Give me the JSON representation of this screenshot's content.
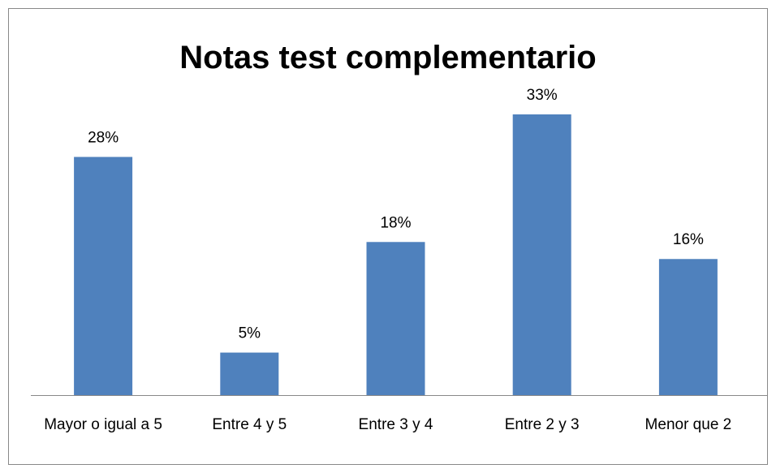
{
  "chart_data": {
    "type": "bar",
    "title": "Notas test complementario",
    "categories": [
      "Mayor o igual a 5",
      "Entre 4 y 5",
      "Entre 3 y 4",
      "Entre 2 y 3",
      "Menor que 2"
    ],
    "values": [
      28,
      5,
      18,
      33,
      16
    ],
    "value_labels": [
      "28%",
      "5%",
      "18%",
      "33%",
      "16%"
    ],
    "color": "#4f81bd"
  }
}
